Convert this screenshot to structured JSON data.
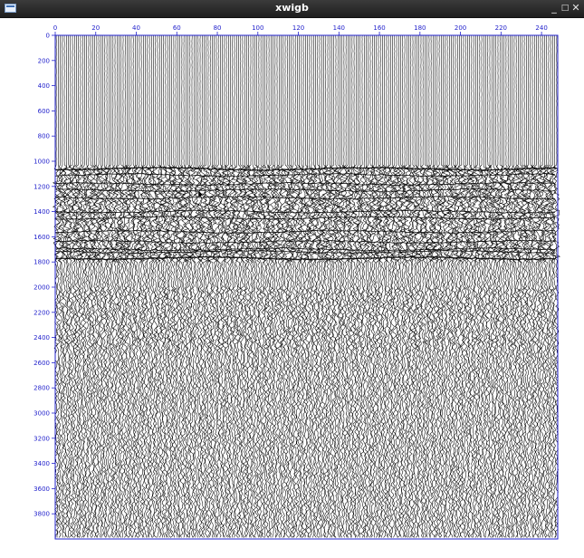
{
  "window": {
    "title": "xwigb",
    "app_icon": "window-app-icon",
    "buttons": {
      "minimize": "_",
      "maximize": "□",
      "close": "✕"
    }
  },
  "plot": {
    "axis_color": "#2222cc",
    "trace_color": "#000000",
    "x_ticks": [
      "0",
      "20",
      "40",
      "60",
      "80",
      "100",
      "120",
      "140",
      "160",
      "180",
      "200",
      "220",
      "240"
    ],
    "y_ticks": [
      "0",
      "200",
      "400",
      "600",
      "800",
      "1000",
      "1200",
      "1400",
      "1600",
      "1800",
      "2000",
      "2200",
      "2400",
      "2600",
      "2800",
      "3000",
      "3200",
      "3400",
      "3600",
      "3800"
    ]
  }
}
